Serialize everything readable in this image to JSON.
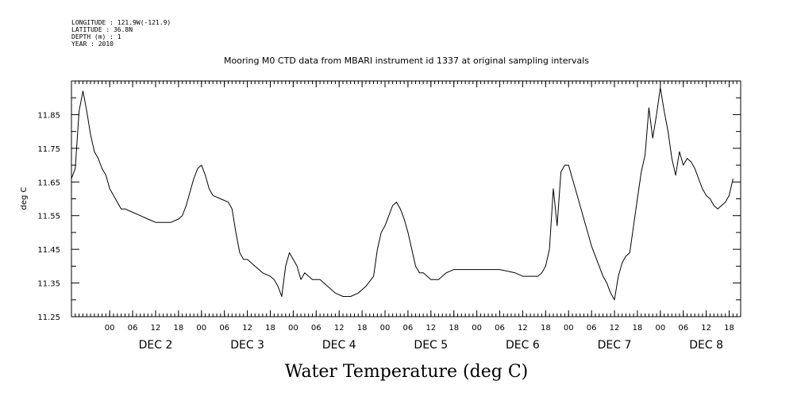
{
  "header": {
    "meta_lines": [
      "LONGITUDE : 121.9W(-121.9)",
      "LATITUDE : 36.8N",
      "DEPTH (m) : 1",
      "YEAR : 2010"
    ],
    "title": "Mooring M0 CTD data from MBARI instrument id 1337 at original sampling intervals"
  },
  "chart_data": {
    "type": "line",
    "title": "Mooring M0 CTD data from MBARI instrument id 1337 at original sampling intervals",
    "xlabel": "Water Temperature (deg C)",
    "ylabel": "deg C",
    "xlim": [
      "2010-12-01 14:00",
      "2010-12-08 21:00"
    ],
    "ylim": [
      11.25,
      11.95
    ],
    "yticks": [
      11.25,
      11.35,
      11.45,
      11.55,
      11.65,
      11.75,
      11.85
    ],
    "ytick_labels": [
      "11.25",
      "11.35",
      "11.45",
      "11.55",
      "11.65",
      "11.75",
      "11.85"
    ],
    "xticks": [
      {
        "t": "2010-12-02 00:00",
        "label": "00"
      },
      {
        "t": "2010-12-02 06:00",
        "label": "06"
      },
      {
        "t": "2010-12-02 12:00",
        "label": "12"
      },
      {
        "t": "2010-12-02 18:00",
        "label": "18"
      },
      {
        "t": "2010-12-03 00:00",
        "label": "00"
      },
      {
        "t": "2010-12-03 06:00",
        "label": "06"
      },
      {
        "t": "2010-12-03 12:00",
        "label": "12"
      },
      {
        "t": "2010-12-03 18:00",
        "label": "18"
      },
      {
        "t": "2010-12-04 00:00",
        "label": "00"
      },
      {
        "t": "2010-12-04 06:00",
        "label": "06"
      },
      {
        "t": "2010-12-04 12:00",
        "label": "12"
      },
      {
        "t": "2010-12-04 18:00",
        "label": "18"
      },
      {
        "t": "2010-12-05 00:00",
        "label": "00"
      },
      {
        "t": "2010-12-05 06:00",
        "label": "06"
      },
      {
        "t": "2010-12-05 12:00",
        "label": "12"
      },
      {
        "t": "2010-12-05 18:00",
        "label": "18"
      },
      {
        "t": "2010-12-06 00:00",
        "label": "00"
      },
      {
        "t": "2010-12-06 06:00",
        "label": "06"
      },
      {
        "t": "2010-12-06 12:00",
        "label": "12"
      },
      {
        "t": "2010-12-06 18:00",
        "label": "18"
      },
      {
        "t": "2010-12-07 00:00",
        "label": "00"
      },
      {
        "t": "2010-12-07 06:00",
        "label": "06"
      },
      {
        "t": "2010-12-07 12:00",
        "label": "12"
      },
      {
        "t": "2010-12-07 18:00",
        "label": "18"
      },
      {
        "t": "2010-12-08 00:00",
        "label": "00"
      },
      {
        "t": "2010-12-08 06:00",
        "label": "06"
      },
      {
        "t": "2010-12-08 12:00",
        "label": "12"
      },
      {
        "t": "2010-12-08 18:00",
        "label": "18"
      }
    ],
    "day_labels": [
      {
        "t": "2010-12-02 12:00",
        "label": "DEC  2"
      },
      {
        "t": "2010-12-03 12:00",
        "label": "DEC  3"
      },
      {
        "t": "2010-12-04 12:00",
        "label": "DEC  4"
      },
      {
        "t": "2010-12-05 12:00",
        "label": "DEC  5"
      },
      {
        "t": "2010-12-06 12:00",
        "label": "DEC  6"
      },
      {
        "t": "2010-12-07 12:00",
        "label": "DEC  7"
      },
      {
        "t": "2010-12-08 12:00",
        "label": "DEC  8"
      }
    ],
    "grid": false,
    "series": [
      {
        "color": "#000000",
        "points": [
          [
            "2010-12-01 14:00",
            11.66
          ],
          [
            "2010-12-01 15:00",
            11.69
          ],
          [
            "2010-12-01 16:00",
            11.86
          ],
          [
            "2010-12-01 17:00",
            11.92
          ],
          [
            "2010-12-01 18:00",
            11.86
          ],
          [
            "2010-12-01 19:00",
            11.79
          ],
          [
            "2010-12-01 20:00",
            11.74
          ],
          [
            "2010-12-01 21:00",
            11.72
          ],
          [
            "2010-12-01 22:00",
            11.69
          ],
          [
            "2010-12-01 23:00",
            11.67
          ],
          [
            "2010-12-02 00:00",
            11.63
          ],
          [
            "2010-12-02 01:00",
            11.61
          ],
          [
            "2010-12-02 02:00",
            11.59
          ],
          [
            "2010-12-02 03:00",
            11.57
          ],
          [
            "2010-12-02 04:00",
            11.57
          ],
          [
            "2010-12-02 06:00",
            11.56
          ],
          [
            "2010-12-02 08:00",
            11.55
          ],
          [
            "2010-12-02 10:00",
            11.54
          ],
          [
            "2010-12-02 12:00",
            11.53
          ],
          [
            "2010-12-02 14:00",
            11.53
          ],
          [
            "2010-12-02 16:00",
            11.53
          ],
          [
            "2010-12-02 18:00",
            11.54
          ],
          [
            "2010-12-02 19:00",
            11.55
          ],
          [
            "2010-12-02 20:00",
            11.58
          ],
          [
            "2010-12-02 21:00",
            11.62
          ],
          [
            "2010-12-02 22:00",
            11.66
          ],
          [
            "2010-12-02 23:00",
            11.69
          ],
          [
            "2010-12-03 00:00",
            11.7
          ],
          [
            "2010-12-03 01:00",
            11.67
          ],
          [
            "2010-12-03 02:00",
            11.63
          ],
          [
            "2010-12-03 03:00",
            11.61
          ],
          [
            "2010-12-03 05:00",
            11.6
          ],
          [
            "2010-12-03 07:00",
            11.59
          ],
          [
            "2010-12-03 08:00",
            11.57
          ],
          [
            "2010-12-03 09:00",
            11.5
          ],
          [
            "2010-12-03 10:00",
            11.44
          ],
          [
            "2010-12-03 11:00",
            11.42
          ],
          [
            "2010-12-03 12:00",
            11.42
          ],
          [
            "2010-12-03 14:00",
            11.4
          ],
          [
            "2010-12-03 16:00",
            11.38
          ],
          [
            "2010-12-03 18:00",
            11.37
          ],
          [
            "2010-12-03 19:00",
            11.36
          ],
          [
            "2010-12-03 20:00",
            11.34
          ],
          [
            "2010-12-03 21:00",
            11.31
          ],
          [
            "2010-12-03 22:00",
            11.4
          ],
          [
            "2010-12-03 23:00",
            11.44
          ],
          [
            "2010-12-04 00:00",
            11.42
          ],
          [
            "2010-12-04 01:00",
            11.4
          ],
          [
            "2010-12-04 02:00",
            11.36
          ],
          [
            "2010-12-04 03:00",
            11.38
          ],
          [
            "2010-12-04 05:00",
            11.36
          ],
          [
            "2010-12-04 07:00",
            11.36
          ],
          [
            "2010-12-04 09:00",
            11.34
          ],
          [
            "2010-12-04 11:00",
            11.32
          ],
          [
            "2010-12-04 13:00",
            11.31
          ],
          [
            "2010-12-04 15:00",
            11.31
          ],
          [
            "2010-12-04 17:00",
            11.32
          ],
          [
            "2010-12-04 19:00",
            11.34
          ],
          [
            "2010-12-04 21:00",
            11.37
          ],
          [
            "2010-12-04 22:00",
            11.45
          ],
          [
            "2010-12-04 23:00",
            11.5
          ],
          [
            "2010-12-05 00:00",
            11.52
          ],
          [
            "2010-12-05 01:00",
            11.55
          ],
          [
            "2010-12-05 02:00",
            11.58
          ],
          [
            "2010-12-05 03:00",
            11.59
          ],
          [
            "2010-12-05 04:00",
            11.57
          ],
          [
            "2010-12-05 05:00",
            11.54
          ],
          [
            "2010-12-05 06:00",
            11.5
          ],
          [
            "2010-12-05 07:00",
            11.45
          ],
          [
            "2010-12-05 08:00",
            11.4
          ],
          [
            "2010-12-05 09:00",
            11.38
          ],
          [
            "2010-12-05 10:00",
            11.38
          ],
          [
            "2010-12-05 12:00",
            11.36
          ],
          [
            "2010-12-05 14:00",
            11.36
          ],
          [
            "2010-12-05 16:00",
            11.38
          ],
          [
            "2010-12-05 18:00",
            11.39
          ],
          [
            "2010-12-06 00:00",
            11.39
          ],
          [
            "2010-12-06 06:00",
            11.39
          ],
          [
            "2010-12-06 10:00",
            11.38
          ],
          [
            "2010-12-06 12:00",
            11.37
          ],
          [
            "2010-12-06 14:00",
            11.37
          ],
          [
            "2010-12-06 16:00",
            11.37
          ],
          [
            "2010-12-06 17:00",
            11.38
          ],
          [
            "2010-12-06 18:00",
            11.4
          ],
          [
            "2010-12-06 19:00",
            11.45
          ],
          [
            "2010-12-06 20:00",
            11.63
          ],
          [
            "2010-12-06 21:00",
            11.52
          ],
          [
            "2010-12-06 22:00",
            11.68
          ],
          [
            "2010-12-06 23:00",
            11.7
          ],
          [
            "2010-12-07 00:00",
            11.7
          ],
          [
            "2010-12-07 01:00",
            11.66
          ],
          [
            "2010-12-07 02:00",
            11.62
          ],
          [
            "2010-12-07 03:00",
            11.58
          ],
          [
            "2010-12-07 04:00",
            11.54
          ],
          [
            "2010-12-07 05:00",
            11.5
          ],
          [
            "2010-12-07 06:00",
            11.46
          ],
          [
            "2010-12-07 07:00",
            11.43
          ],
          [
            "2010-12-07 08:00",
            11.4
          ],
          [
            "2010-12-07 09:00",
            11.37
          ],
          [
            "2010-12-07 10:00",
            11.35
          ],
          [
            "2010-12-07 11:00",
            11.32
          ],
          [
            "2010-12-07 12:00",
            11.3
          ],
          [
            "2010-12-07 13:00",
            11.37
          ],
          [
            "2010-12-07 14:00",
            11.41
          ],
          [
            "2010-12-07 15:00",
            11.43
          ],
          [
            "2010-12-07 16:00",
            11.44
          ],
          [
            "2010-12-07 17:00",
            11.52
          ],
          [
            "2010-12-07 18:00",
            11.6
          ],
          [
            "2010-12-07 19:00",
            11.68
          ],
          [
            "2010-12-07 20:00",
            11.73
          ],
          [
            "2010-12-07 21:00",
            11.87
          ],
          [
            "2010-12-07 22:00",
            11.78
          ],
          [
            "2010-12-07 23:00",
            11.85
          ],
          [
            "2010-12-08 00:00",
            11.93
          ],
          [
            "2010-12-08 01:00",
            11.86
          ],
          [
            "2010-12-08 02:00",
            11.8
          ],
          [
            "2010-12-08 03:00",
            11.72
          ],
          [
            "2010-12-08 04:00",
            11.67
          ],
          [
            "2010-12-08 05:00",
            11.74
          ],
          [
            "2010-12-08 06:00",
            11.7
          ],
          [
            "2010-12-08 07:00",
            11.72
          ],
          [
            "2010-12-08 08:00",
            11.71
          ],
          [
            "2010-12-08 09:00",
            11.69
          ],
          [
            "2010-12-08 10:00",
            11.66
          ],
          [
            "2010-12-08 11:00",
            11.63
          ],
          [
            "2010-12-08 12:00",
            11.61
          ],
          [
            "2010-12-08 13:00",
            11.6
          ],
          [
            "2010-12-08 14:00",
            11.58
          ],
          [
            "2010-12-08 15:00",
            11.57
          ],
          [
            "2010-12-08 16:00",
            11.58
          ],
          [
            "2010-12-08 17:00",
            11.59
          ],
          [
            "2010-12-08 18:00",
            11.61
          ],
          [
            "2010-12-08 19:00",
            11.66
          ]
        ]
      }
    ]
  }
}
